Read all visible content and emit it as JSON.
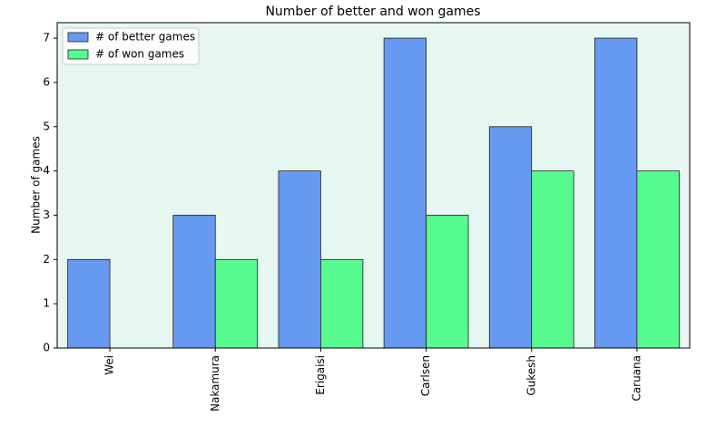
{
  "chart_data": {
    "type": "bar",
    "title": "Number of better and won games",
    "ylabel": "Number of games",
    "categories": [
      "Wei",
      "Nakamura",
      "Erigaisi",
      "Carlsen",
      "Gukesh",
      "Caruana"
    ],
    "series": [
      {
        "name": "# of better games",
        "color": "#6699f0",
        "values": [
          2,
          3,
          4,
          7,
          5,
          7
        ]
      },
      {
        "name": "# of won games",
        "color": "#57fa8e",
        "values": [
          0,
          2,
          2,
          3,
          4,
          4
        ]
      }
    ],
    "ylim": [
      0,
      7.35
    ],
    "yticks": [
      0,
      1,
      2,
      3,
      4,
      5,
      6,
      7
    ],
    "legend": "upper left",
    "background": "#e6f6f0"
  }
}
